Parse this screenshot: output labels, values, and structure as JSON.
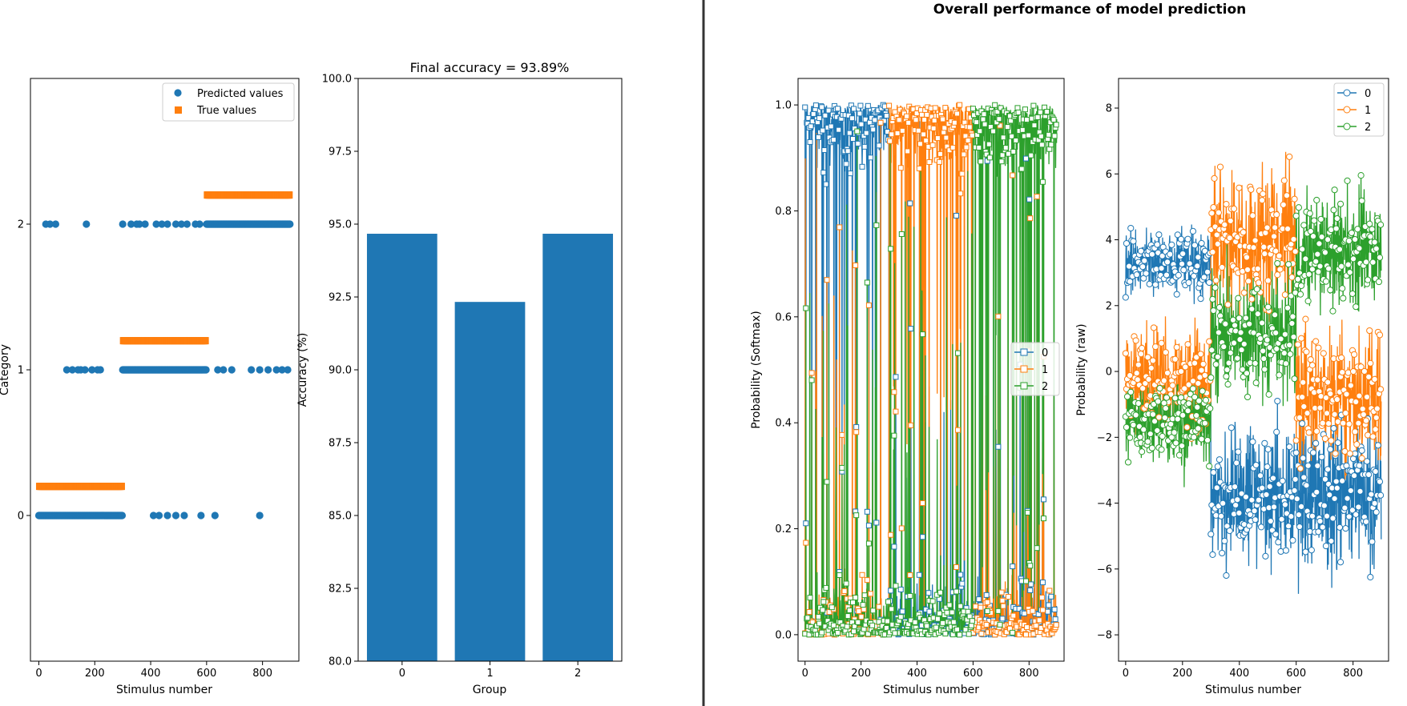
{
  "colors": {
    "c0": "#1f77b4",
    "c1": "#ff7f0e",
    "c2": "#2ca02c",
    "divider": "#333333"
  },
  "suptitle": "Overall performance of model prediction",
  "chart_data": [
    {
      "type": "scatter",
      "xlabel": "Stimulus number",
      "ylabel": "Category",
      "xlim": [
        -30,
        930
      ],
      "ylim": [
        -1,
        3
      ],
      "xticks": [
        "0",
        "200",
        "400",
        "600",
        "800"
      ],
      "yticks": [
        "0",
        "1",
        "2"
      ],
      "legend": "top-right",
      "series": [
        {
          "name": "Predicted values",
          "marker": "circle",
          "x_ranges": [
            [
              0,
              300,
              0
            ],
            [
              300,
              600,
              1
            ],
            [
              600,
              900,
              2
            ]
          ],
          "outliers": [
            [
              25,
              2
            ],
            [
              40,
              2
            ],
            [
              60,
              2
            ],
            [
              170,
              2
            ],
            [
              300,
              2
            ],
            [
              330,
              2
            ],
            [
              350,
              2
            ],
            [
              360,
              2
            ],
            [
              380,
              2
            ],
            [
              420,
              2
            ],
            [
              440,
              2
            ],
            [
              460,
              2
            ],
            [
              490,
              2
            ],
            [
              510,
              2
            ],
            [
              530,
              2
            ],
            [
              560,
              2
            ],
            [
              575,
              2
            ],
            [
              100,
              1
            ],
            [
              120,
              1
            ],
            [
              140,
              1
            ],
            [
              150,
              1
            ],
            [
              165,
              1
            ],
            [
              190,
              1
            ],
            [
              210,
              1
            ],
            [
              220,
              1
            ],
            [
              640,
              1
            ],
            [
              660,
              1
            ],
            [
              690,
              1
            ],
            [
              760,
              1
            ],
            [
              790,
              1
            ],
            [
              820,
              1
            ],
            [
              850,
              1
            ],
            [
              870,
              1
            ],
            [
              890,
              1
            ],
            [
              410,
              0
            ],
            [
              430,
              0
            ],
            [
              460,
              0
            ],
            [
              490,
              0
            ],
            [
              520,
              0
            ],
            [
              580,
              0
            ],
            [
              630,
              0
            ],
            [
              790,
              0
            ]
          ]
        },
        {
          "name": "True values",
          "marker": "square",
          "x_ranges": [
            [
              0,
              300,
              0.2
            ],
            [
              300,
              600,
              1.2
            ],
            [
              600,
              900,
              2.2
            ]
          ]
        }
      ]
    },
    {
      "type": "bar",
      "title": "Final accuracy = 93.89%",
      "xlabel": "Group",
      "ylabel": "Accuracy (%)",
      "categories": [
        "0",
        "1",
        "2"
      ],
      "values": [
        94.67,
        92.33,
        94.67
      ],
      "ylim": [
        80,
        100
      ],
      "yticks": [
        "80.0",
        "82.5",
        "85.0",
        "87.5",
        "90.0",
        "92.5",
        "95.0",
        "97.5",
        "100.0"
      ]
    },
    {
      "type": "line",
      "xlabel": "Stimulus number",
      "ylabel": "Probability (Softmax)",
      "xlim": [
        -25,
        925
      ],
      "ylim": [
        -0.05,
        1.05
      ],
      "xticks": [
        "0",
        "200",
        "400",
        "600",
        "800"
      ],
      "yticks": [
        "0.0",
        "0.2",
        "0.4",
        "0.6",
        "0.8",
        "1.0"
      ],
      "legend": "center-right",
      "marker": "square",
      "series": [
        {
          "name": "0"
        },
        {
          "name": "1"
        },
        {
          "name": "2"
        }
      ]
    },
    {
      "type": "line",
      "xlabel": "Stimulus number",
      "ylabel": "Probability (raw)",
      "xlim": [
        -25,
        925
      ],
      "ylim": [
        -8.8,
        8.9
      ],
      "xticks": [
        "0",
        "200",
        "400",
        "600",
        "800"
      ],
      "yticks": [
        "−8",
        "−6",
        "−4",
        "−2",
        "0",
        "2",
        "4",
        "6",
        "8"
      ],
      "legend": "top-right",
      "marker": "circle",
      "series": [
        {
          "name": "0"
        },
        {
          "name": "1"
        },
        {
          "name": "2"
        }
      ]
    }
  ]
}
